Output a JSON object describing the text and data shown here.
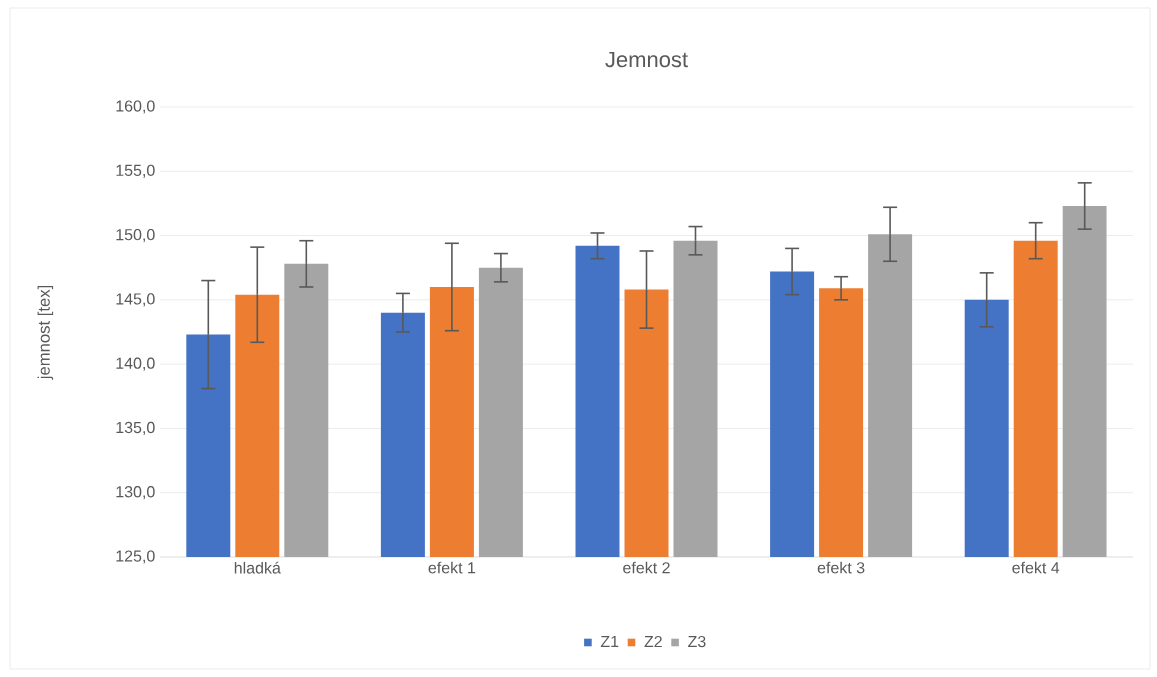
{
  "chart_data": {
    "type": "bar",
    "title": "Jemnost",
    "ylabel": "jemnost [tex]",
    "categories": [
      "hladká",
      "efekt 1",
      "efekt 2",
      "efekt 3",
      "efekt 4"
    ],
    "series": [
      {
        "name": "Z1",
        "color": "#4472c4",
        "values": [
          142.3,
          144.0,
          149.2,
          147.2,
          145.0
        ],
        "errors": [
          4.2,
          1.5,
          1.0,
          1.8,
          2.1
        ]
      },
      {
        "name": "Z2",
        "color": "#ed7d31",
        "values": [
          145.4,
          146.0,
          145.8,
          145.9,
          149.6
        ],
        "errors": [
          3.7,
          3.4,
          3.0,
          0.9,
          1.4
        ]
      },
      {
        "name": "Z3",
        "color": "#a5a5a5",
        "values": [
          147.8,
          147.5,
          149.6,
          150.1,
          152.3
        ],
        "errors": [
          1.8,
          1.1,
          1.1,
          2.1,
          1.8
        ]
      }
    ],
    "ylim": [
      125,
      160
    ],
    "yticks": [
      {
        "value": 125,
        "label": "125,0"
      },
      {
        "value": 130,
        "label": "130,0"
      },
      {
        "value": 135,
        "label": "135,0"
      },
      {
        "value": 140,
        "label": "140,0"
      },
      {
        "value": 145,
        "label": "145,0"
      },
      {
        "value": 150,
        "label": "150,0"
      },
      {
        "value": 155,
        "label": "155,0"
      },
      {
        "value": 160,
        "label": "160,0"
      }
    ],
    "grid": "y",
    "legend": "bottom"
  }
}
